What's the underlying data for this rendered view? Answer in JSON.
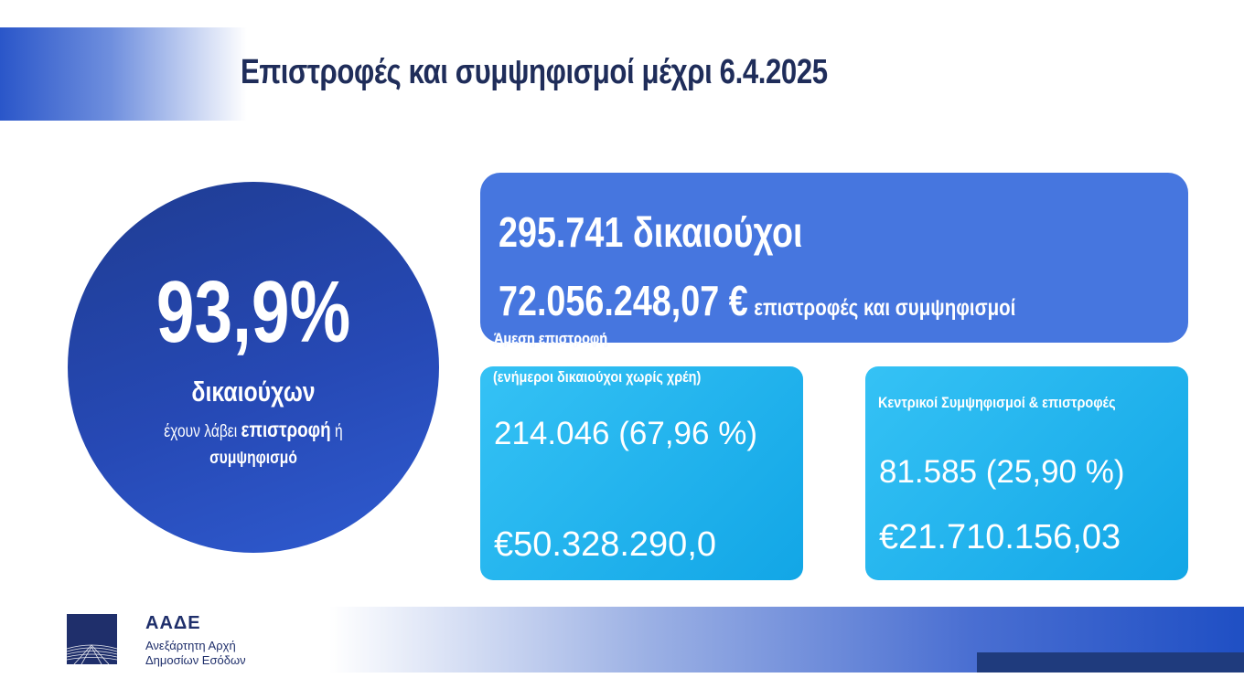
{
  "title": "Επιστροφές και συμψηφισμοί μέχρι 6.4.2025",
  "circle": {
    "percent": "93,9%",
    "line1": "δικαιούχων",
    "line2_pre": "έχουν λάβει ",
    "line2_bold": "επιστροφή",
    "line2_post": " ή",
    "line3": "συμψηφισμό"
  },
  "summary": {
    "beneficiaries": "295.741 δικαιούχοι",
    "amount": "72.056.248,07 €",
    "amount_label": "επιστροφές και συμψηφισμοί"
  },
  "left_card": {
    "overlap_label": "Άμεση επιστροφή",
    "heading": "(ενήμεροι δικαιούχοι χωρίς χρέη)",
    "count": "214.046 (67,96 %)",
    "amount": "€50.328.290,0"
  },
  "right_card": {
    "heading": "Κεντρικοί Συμψηφισμοί & επιστροφές",
    "count": "81.585 (25,90 %)",
    "amount": "€21.710.156,03"
  },
  "logo": {
    "name": "ΑΑΔΕ",
    "subtitle_line1": "Ανεξάρτητη Αρχή",
    "subtitle_line2": "Δημοσίων Εσόδων"
  },
  "colors": {
    "title": "#1f2d5a",
    "circle": "#2649b5",
    "summary_box": "#4676df",
    "cards": "#1aaeea"
  }
}
